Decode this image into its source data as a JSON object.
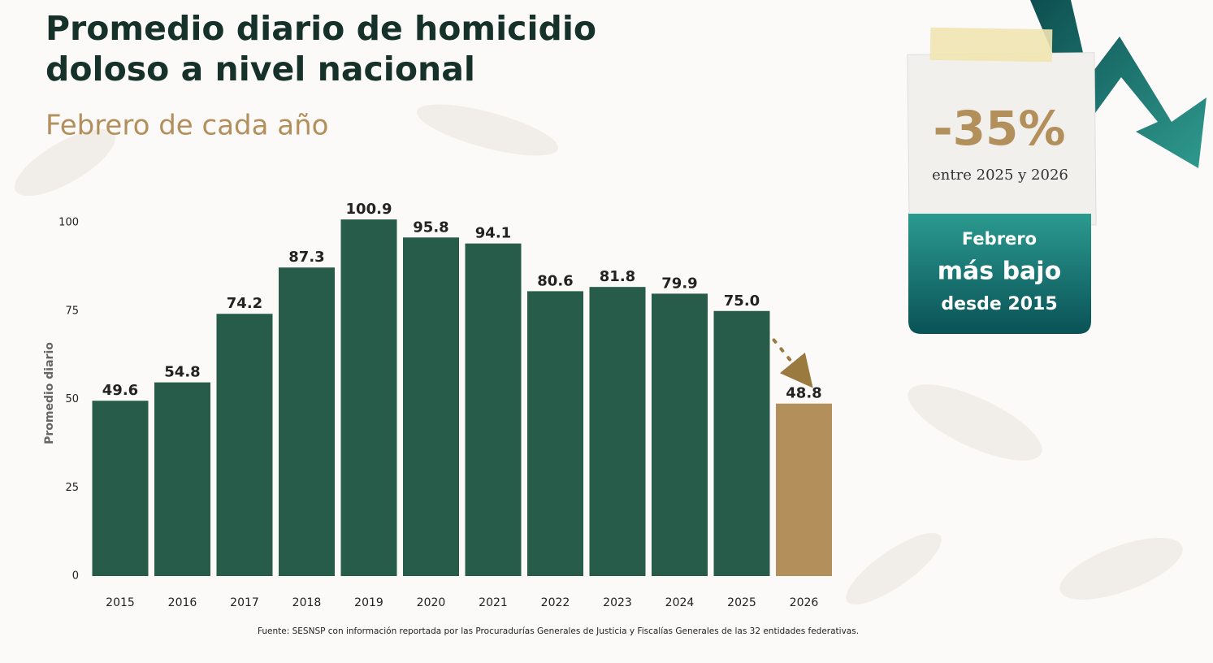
{
  "chart_data": {
    "type": "bar",
    "title": [
      "Promedio diario de homicidio",
      "doloso a nivel nacional"
    ],
    "subtitle": "Febrero de cada año",
    "y_label": "Promedio diario",
    "categories": [
      "2015",
      "2016",
      "2017",
      "2018",
      "2019",
      "2020",
      "2021",
      "2022",
      "2023",
      "2024",
      "2025",
      "2026"
    ],
    "values": [
      49.6,
      54.8,
      74.2,
      87.3,
      100.9,
      95.8,
      94.1,
      80.6,
      81.8,
      79.9,
      75.0,
      48.8
    ],
    "value_labels": [
      "49.6",
      "54.8",
      "74.2",
      "87.3",
      "100.9",
      "95.8",
      "94.1",
      "80.6",
      "81.8",
      "79.9",
      "75.0",
      "48.8"
    ],
    "colors": [
      "#275c4b",
      "#275c4b",
      "#275c4b",
      "#275c4b",
      "#275c4b",
      "#275c4b",
      "#275c4b",
      "#275c4b",
      "#275c4b",
      "#275c4b",
      "#275c4b",
      "#b38f5c"
    ],
    "ylim": [
      0,
      105
    ],
    "yticks": [
      0,
      25,
      50,
      75,
      100
    ],
    "grid": false,
    "callout": {
      "change": "-35%",
      "period": "entre 2025 y 2026",
      "lines": [
        "Febrero",
        "más bajo",
        "desde 2015"
      ]
    },
    "source": "Fuente: SESNSP con información reportada por las Procuradurías Generales de Justicia y Fiscalías Generales de las 32 entidades federativas."
  }
}
